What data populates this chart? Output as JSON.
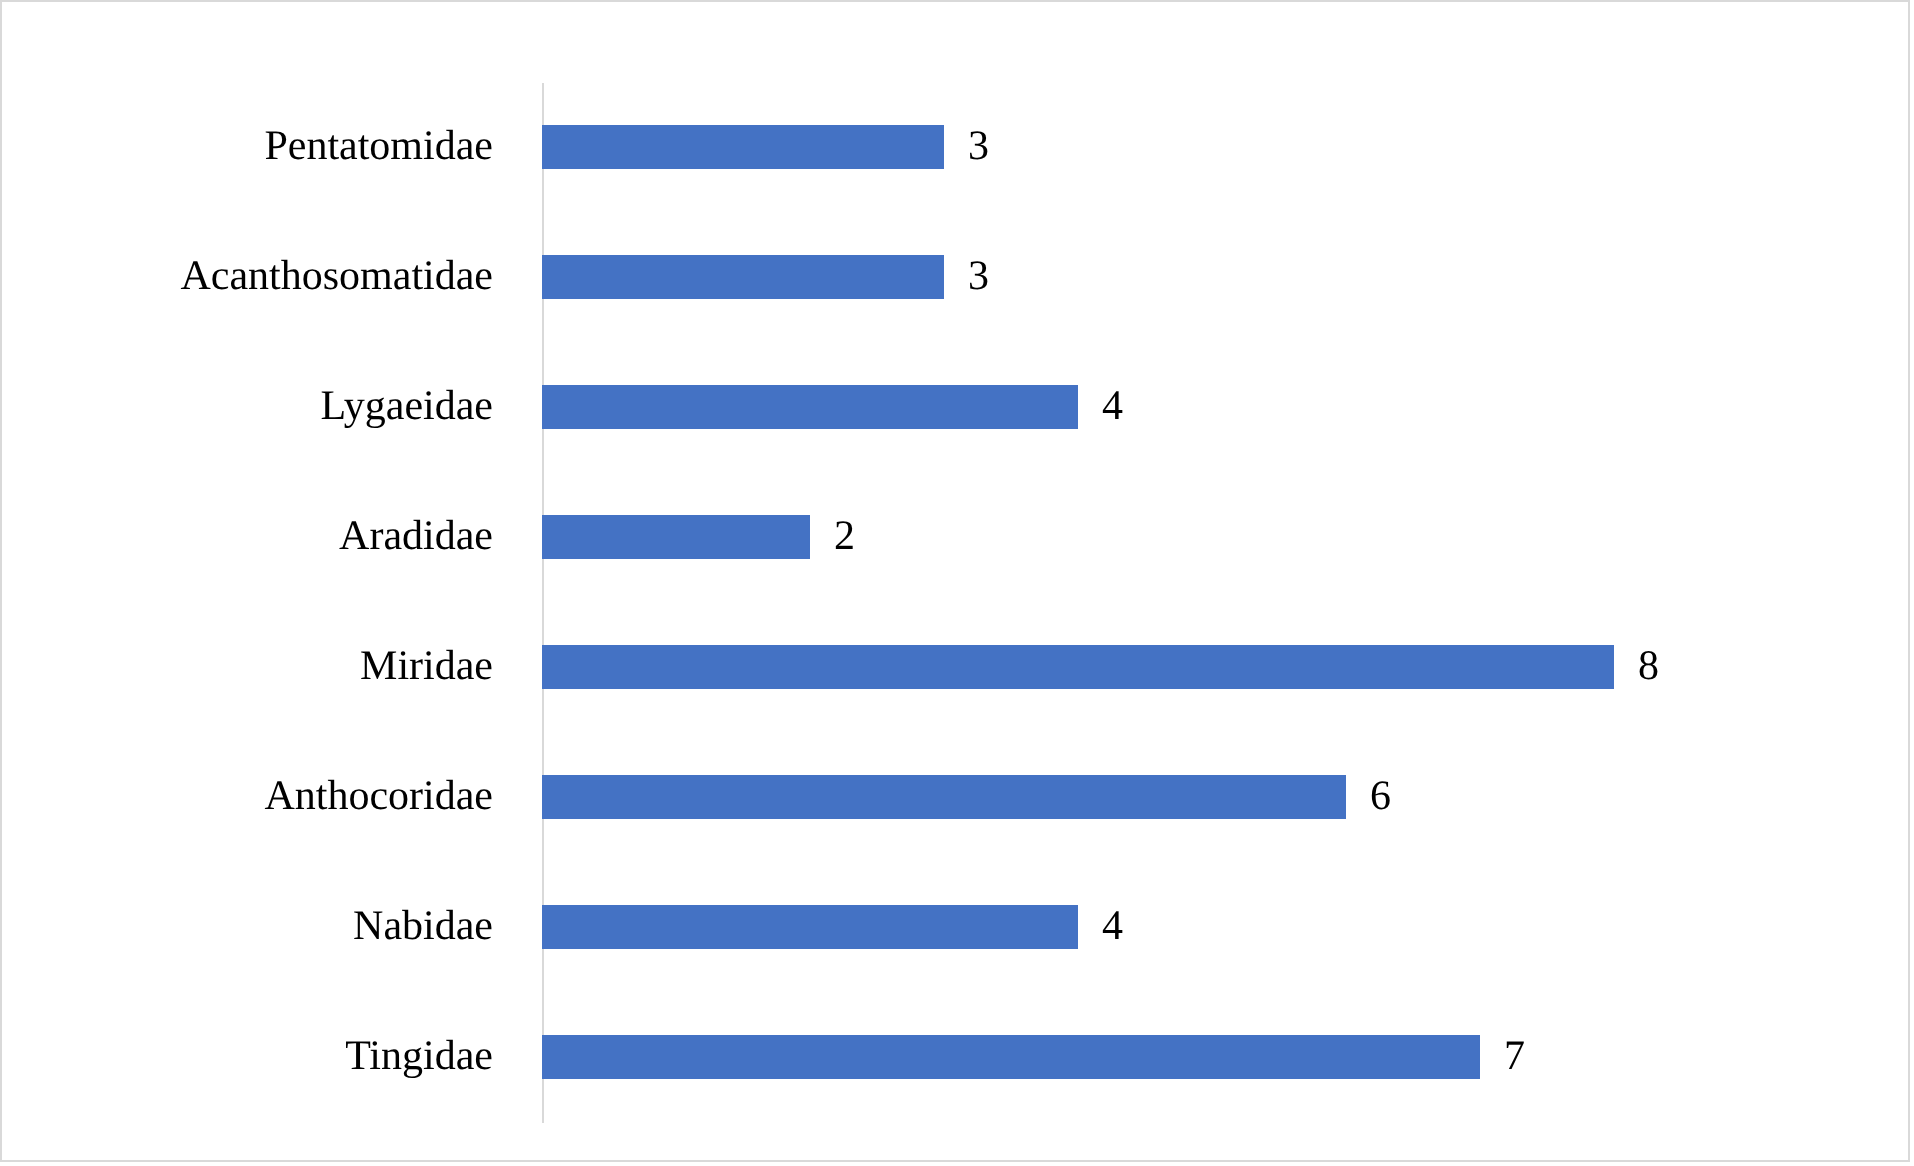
{
  "chart_data": {
    "type": "bar",
    "orientation": "horizontal",
    "categories": [
      "Pentatomidae",
      "Acanthosomatidae",
      "Lygaeidae",
      "Aradidae",
      "Miridae",
      "Anthocoridae",
      "Nabidae",
      "Tingidae"
    ],
    "values": [
      3,
      3,
      4,
      2,
      8,
      6,
      4,
      7
    ],
    "color": "#4472c4",
    "data_labels": true,
    "tick_labels": "y"
  }
}
